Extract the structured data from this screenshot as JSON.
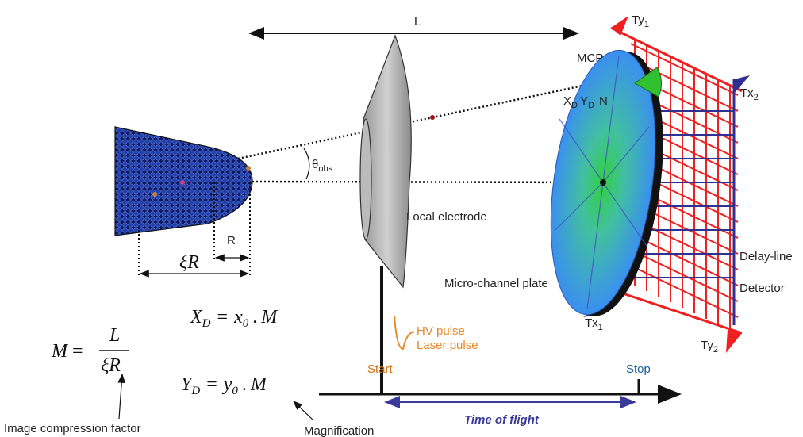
{
  "top_length_label": "L",
  "mcp_label": "MCP",
  "ty1": {
    "text": "Ty",
    "sub": "1"
  },
  "tx2": {
    "text": "Tx",
    "sub": "2"
  },
  "tx1": {
    "text": "Tx",
    "sub": "1"
  },
  "ty2": {
    "text": "Ty",
    "sub": "2"
  },
  "detector_coords": {
    "x": "X",
    "x_sub": "D",
    "y": "Y",
    "y_sub": "D",
    "n": "N"
  },
  "angle": {
    "text": "θ",
    "sub": "obs"
  },
  "radius_label": "R",
  "shank_label": "ξR",
  "local_electrode": "Local electrode",
  "mcp_name": "Micro-channel plate",
  "delay_line": [
    "Delay-line",
    "Detector"
  ],
  "pulses": [
    "HV pulse",
    "Laser pulse"
  ],
  "start": "Start",
  "stop": "Stop",
  "time_of_flight": "Time of flight",
  "eq_xd": {
    "lhs": "X",
    "lhs_sub": "D",
    "eq": "=",
    "rhs": "x",
    "rhs_sub": "0",
    "dot": ".",
    "m": "M"
  },
  "eq_yd": {
    "lhs": "Y",
    "lhs_sub": "D",
    "eq": "=",
    "rhs": "y",
    "rhs_sub": "0",
    "dot": ".",
    "m": "M"
  },
  "eq_m": {
    "lhs": "M",
    "eq": "=",
    "num": "L",
    "den": "ξR"
  },
  "image_compression_factor": "Image compression factor",
  "magnification": "Magnification"
}
